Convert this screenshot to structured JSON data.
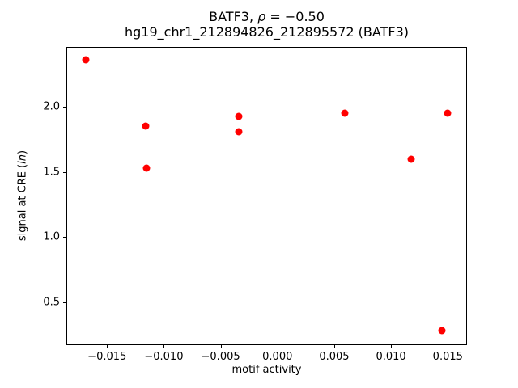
{
  "figure": {
    "title_line1": {
      "prefix": "BATF3, ",
      "rho": "ρ",
      "suffix": " = −0.50"
    },
    "title_line2": "hg19_chr1_212894826_212895572 (BATF3)",
    "xlabel": "motif activity",
    "ylabel": {
      "prefix": "signal at CRE (",
      "italic": "ln",
      "suffix": ")"
    }
  },
  "chart_data": {
    "type": "scatter",
    "title": "BATF3, ρ = −0.50",
    "subtitle": "hg19_chr1_212894826_212895572 (BATF3)",
    "xlabel": "motif activity",
    "ylabel": "signal at CRE (ln)",
    "marker_color": "#ff0000",
    "marker_diameter_px": 9,
    "grid": false,
    "legend": null,
    "xlim": [
      -0.01858,
      0.01669
    ],
    "ylim": [
      0.171,
      2.461
    ],
    "xticks": [
      -0.015,
      -0.01,
      -0.005,
      0.0,
      0.005,
      0.01,
      0.015
    ],
    "xtick_labels": [
      "−0.015",
      "−0.010",
      "−0.005",
      "0.000",
      "0.005",
      "0.010",
      "0.015"
    ],
    "yticks": [
      0.5,
      1.0,
      1.5,
      2.0
    ],
    "ytick_labels": [
      "0.5",
      "1.0",
      "1.5",
      "2.0"
    ],
    "points": [
      [
        -0.0169,
        2.36
      ],
      [
        -0.0116,
        1.85
      ],
      [
        -0.0115,
        1.53
      ],
      [
        -0.0034,
        1.93
      ],
      [
        -0.0034,
        1.81
      ],
      [
        0.0059,
        1.95
      ],
      [
        0.015,
        1.95
      ],
      [
        0.0118,
        1.6
      ],
      [
        0.0145,
        0.28
      ]
    ]
  }
}
